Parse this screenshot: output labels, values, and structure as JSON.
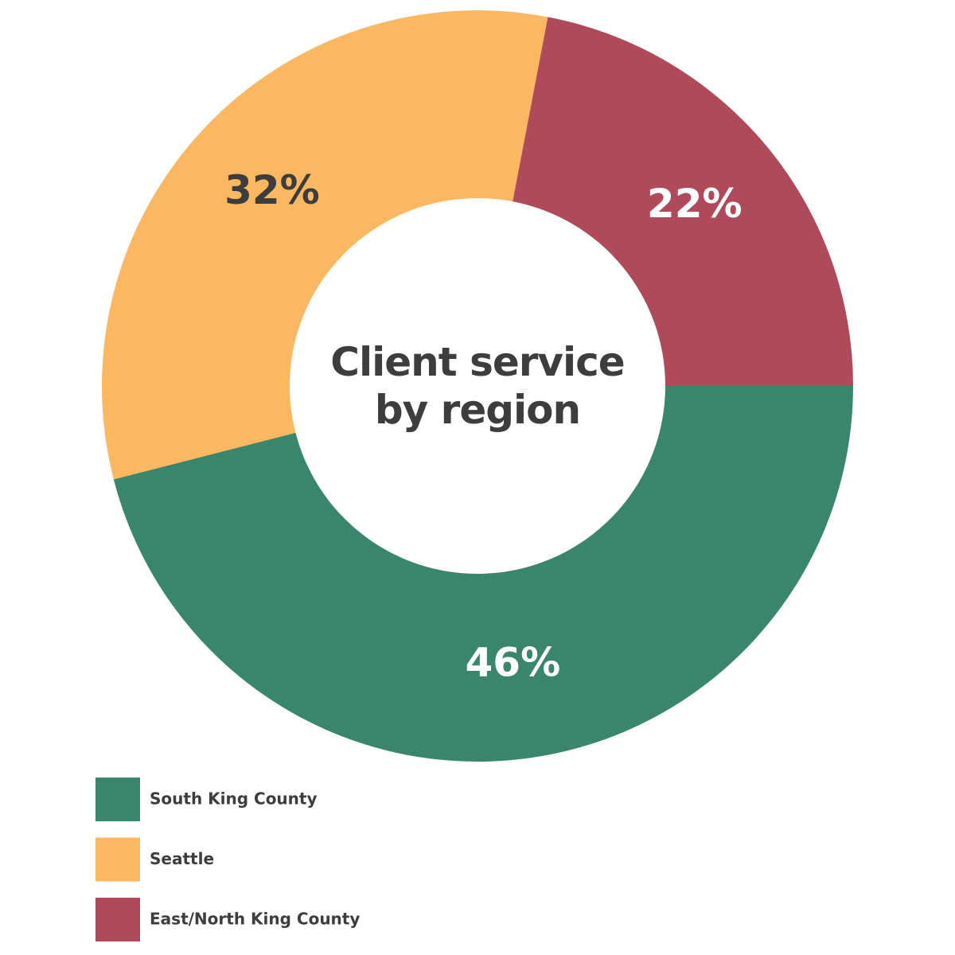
{
  "chart_data": {
    "type": "donut",
    "title": "Client service by region",
    "categories": [
      "South King County",
      "Seattle",
      "East/North King County"
    ],
    "values": [
      46,
      32,
      22
    ],
    "value_labels": [
      "46%",
      "32%",
      "22%"
    ],
    "colors": [
      "#3a866c",
      "#fbb860",
      "#ae4a59"
    ],
    "label_colors": [
      "#ffffff",
      "#3d3d3d",
      "#ffffff"
    ],
    "legend": "bottom-left"
  }
}
